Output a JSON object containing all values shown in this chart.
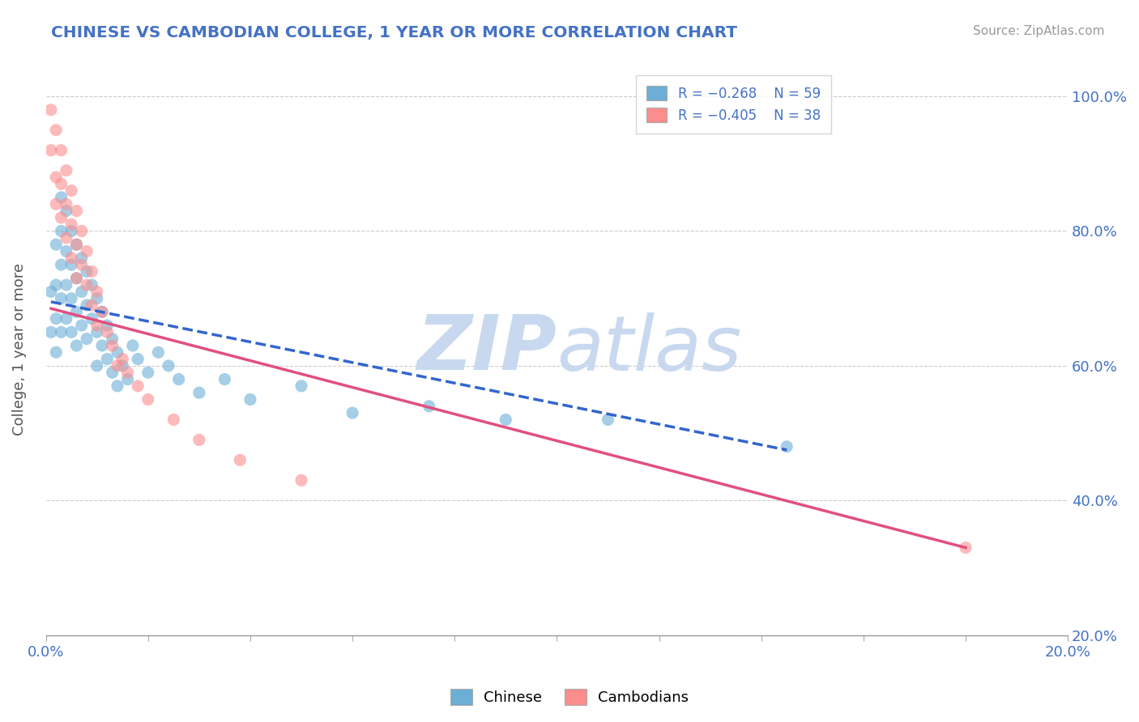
{
  "title": "CHINESE VS CAMBODIAN COLLEGE, 1 YEAR OR MORE CORRELATION CHART",
  "source_text": "Source: ZipAtlas.com",
  "ylabel": "College, 1 year or more",
  "xmin": 0.0,
  "xmax": 0.2,
  "ymin": 0.2,
  "ymax": 1.05,
  "y_tick_labels": [
    "20.0%",
    "40.0%",
    "60.0%",
    "80.0%",
    "100.0%"
  ],
  "y_ticks": [
    0.2,
    0.4,
    0.6,
    0.8,
    1.0
  ],
  "legend_r1": "R = −0.268",
  "legend_n1": "N = 59",
  "legend_r2": "R = −0.405",
  "legend_n2": "N = 38",
  "blue_color": "#6baed6",
  "pink_color": "#fc8d8d",
  "title_color": "#4472c4",
  "axis_color": "#4472c4",
  "watermark_color": "#c8d8ef",
  "chinese_x": [
    0.001,
    0.001,
    0.002,
    0.002,
    0.002,
    0.002,
    0.003,
    0.003,
    0.003,
    0.003,
    0.003,
    0.004,
    0.004,
    0.004,
    0.004,
    0.005,
    0.005,
    0.005,
    0.005,
    0.006,
    0.006,
    0.006,
    0.006,
    0.007,
    0.007,
    0.007,
    0.008,
    0.008,
    0.008,
    0.009,
    0.009,
    0.01,
    0.01,
    0.01,
    0.011,
    0.011,
    0.012,
    0.012,
    0.013,
    0.013,
    0.014,
    0.014,
    0.015,
    0.016,
    0.017,
    0.018,
    0.02,
    0.022,
    0.024,
    0.026,
    0.03,
    0.035,
    0.04,
    0.05,
    0.06,
    0.075,
    0.09,
    0.11,
    0.145
  ],
  "chinese_y": [
    0.71,
    0.65,
    0.78,
    0.72,
    0.67,
    0.62,
    0.85,
    0.8,
    0.75,
    0.7,
    0.65,
    0.83,
    0.77,
    0.72,
    0.67,
    0.8,
    0.75,
    0.7,
    0.65,
    0.78,
    0.73,
    0.68,
    0.63,
    0.76,
    0.71,
    0.66,
    0.74,
    0.69,
    0.64,
    0.72,
    0.67,
    0.7,
    0.65,
    0.6,
    0.68,
    0.63,
    0.66,
    0.61,
    0.64,
    0.59,
    0.62,
    0.57,
    0.6,
    0.58,
    0.63,
    0.61,
    0.59,
    0.62,
    0.6,
    0.58,
    0.56,
    0.58,
    0.55,
    0.57,
    0.53,
    0.54,
    0.52,
    0.52,
    0.48
  ],
  "cambodian_x": [
    0.001,
    0.001,
    0.002,
    0.002,
    0.002,
    0.003,
    0.003,
    0.003,
    0.004,
    0.004,
    0.004,
    0.005,
    0.005,
    0.005,
    0.006,
    0.006,
    0.006,
    0.007,
    0.007,
    0.008,
    0.008,
    0.009,
    0.009,
    0.01,
    0.01,
    0.011,
    0.012,
    0.013,
    0.014,
    0.015,
    0.016,
    0.018,
    0.02,
    0.025,
    0.03,
    0.038,
    0.05,
    0.18
  ],
  "cambodian_y": [
    0.98,
    0.92,
    0.95,
    0.88,
    0.84,
    0.92,
    0.87,
    0.82,
    0.89,
    0.84,
    0.79,
    0.86,
    0.81,
    0.76,
    0.83,
    0.78,
    0.73,
    0.8,
    0.75,
    0.77,
    0.72,
    0.74,
    0.69,
    0.71,
    0.66,
    0.68,
    0.65,
    0.63,
    0.6,
    0.61,
    0.59,
    0.57,
    0.55,
    0.52,
    0.49,
    0.46,
    0.43,
    0.33
  ],
  "blue_line_x": [
    0.001,
    0.145
  ],
  "blue_line_y": [
    0.695,
    0.475
  ],
  "pink_line_x": [
    0.001,
    0.18
  ],
  "pink_line_y": [
    0.685,
    0.33
  ]
}
